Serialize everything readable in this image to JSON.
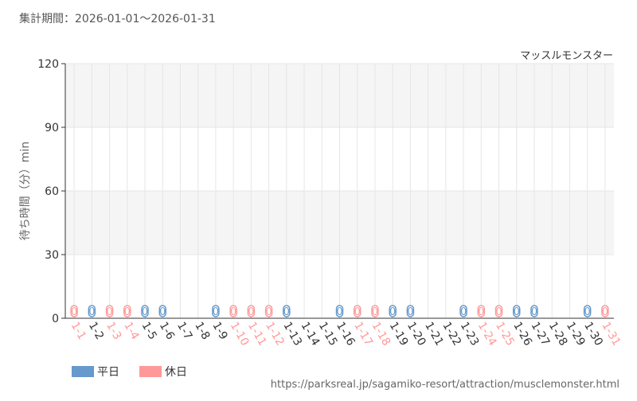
{
  "header": "集計期間：2026-01-01～2026-01-31",
  "footer": "https://parksreal.jp/sagamiko-resort/attraction/musclemonster.html",
  "chart_data": {
    "type": "bar",
    "subtitle": "マッスルモンスター",
    "y_label": "待ち時間（分）min",
    "categories": [
      "1-1",
      "1-2",
      "1-3",
      "1-4",
      "1-5",
      "1-6",
      "1-7",
      "1-8",
      "1-9",
      "1-10",
      "1-11",
      "1-12",
      "1-13",
      "1-14",
      "1-15",
      "1-16",
      "1-17",
      "1-18",
      "1-19",
      "1-20",
      "1-21",
      "1-22",
      "1-23",
      "1-24",
      "1-25",
      "1-26",
      "1-27",
      "1-28",
      "1-29",
      "1-30",
      "1-31"
    ],
    "series": [
      {
        "name": "平日",
        "color": "#6699cc",
        "values": [
          null,
          0,
          null,
          null,
          0,
          0,
          null,
          null,
          0,
          null,
          null,
          null,
          0,
          null,
          null,
          0,
          null,
          null,
          0,
          0,
          null,
          null,
          0,
          null,
          null,
          0,
          0,
          null,
          null,
          0,
          null
        ]
      },
      {
        "name": "休日",
        "color": "#ff9999",
        "values": [
          0,
          null,
          0,
          0,
          null,
          null,
          null,
          null,
          null,
          0,
          0,
          0,
          null,
          null,
          null,
          null,
          0,
          0,
          null,
          null,
          null,
          null,
          null,
          0,
          0,
          null,
          null,
          null,
          null,
          null,
          0
        ]
      }
    ],
    "ylim": [
      0,
      120
    ],
    "yticks": [
      0,
      30,
      60,
      90,
      120
    ],
    "grid": true
  }
}
